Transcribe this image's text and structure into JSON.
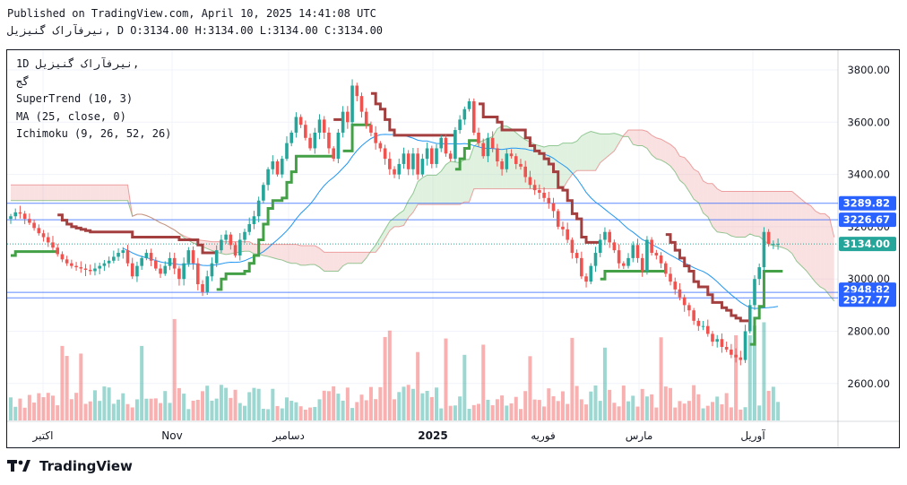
{
  "header": {
    "published": "Published on TradingView.com, April 10, 2025 14:41:08 UTC",
    "ohlc_line": "نیرفآراک گنیزیل, D O:3134.00 H:3134.00 L:3134.00 C:3134.00"
  },
  "legend": {
    "symbol": "1D نیرفآراک گنیزیل,",
    "subtitle": "گج",
    "supertrend": "SuperTrend (10, 3)",
    "ma": "MA (25, close, 0)",
    "ichimoku": "Ichimoku (9, 26, 52, 26)"
  },
  "price_axis": {
    "ticks": [
      "3800.00",
      "3600.00",
      "3400.00",
      "3200.00",
      "3000.00",
      "2800.00",
      "2600.00"
    ],
    "badges": [
      {
        "value": "3289.82",
        "color": "#2962ff"
      },
      {
        "value": "3226.67",
        "color": "#2962ff"
      },
      {
        "value": "3134.00",
        "color": "#26a69a"
      },
      {
        "value": "2948.82",
        "color": "#2962ff"
      },
      {
        "value": "2927.77",
        "color": "#2962ff"
      }
    ]
  },
  "time_axis": {
    "labels": [
      {
        "text": "اکتبر",
        "bold": false
      },
      {
        "text": "Nov",
        "bold": false
      },
      {
        "text": "دسامبر",
        "bold": false
      },
      {
        "text": "2025",
        "bold": true
      },
      {
        "text": "فوریه",
        "bold": false
      },
      {
        "text": "مارس",
        "bold": false
      },
      {
        "text": "آوریل",
        "bold": false
      }
    ]
  },
  "footer": {
    "brand": "TradingView"
  },
  "colors": {
    "up": "#26a69a",
    "down": "#ef5350",
    "ma": "#2196f3",
    "supertrend_up": "#43a047",
    "supertrend_down": "#a33f3f",
    "cloud_bull": "#a5d6a7",
    "cloud_bear": "#ef9a9a",
    "hline": "#2962ff"
  },
  "chart_data": {
    "type": "candlestick",
    "ylim": [
      2430,
      3880
    ],
    "horizontal_levels": [
      3289.82,
      3226.67,
      3134.0,
      2948.82,
      2927.77
    ],
    "last_price": 3134.0,
    "closes": [
      3240,
      3255,
      3250,
      3230,
      3215,
      3195,
      3175,
      3160,
      3140,
      3120,
      3095,
      3075,
      3060,
      3050,
      3045,
      3040,
      3035,
      3030,
      3040,
      3050,
      3060,
      3070,
      3085,
      3100,
      3110,
      3060,
      3010,
      3050,
      3080,
      3100,
      3070,
      3040,
      3020,
      3050,
      3080,
      3040,
      3000,
      3060,
      3110,
      3060,
      2980,
      2950,
      3010,
      3060,
      3110,
      3150,
      3170,
      3130,
      3090,
      3150,
      3180,
      3210,
      3240,
      3300,
      3360,
      3420,
      3450,
      3400,
      3460,
      3520,
      3560,
      3620,
      3590,
      3540,
      3500,
      3560,
      3610,
      3560,
      3500,
      3460,
      3560,
      3640,
      3600,
      3740,
      3700,
      3640,
      3590,
      3560,
      3520,
      3500,
      3460,
      3420,
      3400,
      3440,
      3480,
      3420,
      3480,
      3400,
      3460,
      3500,
      3440,
      3500,
      3540,
      3480,
      3460,
      3570,
      3610,
      3650,
      3680,
      3560,
      3520,
      3470,
      3540,
      3500,
      3450,
      3420,
      3480,
      3470,
      3440,
      3430,
      3390,
      3360,
      3340,
      3330,
      3310,
      3290,
      3260,
      3200,
      3190,
      3150,
      3100,
      3080,
      3010,
      2990,
      3050,
      3100,
      3150,
      3180,
      3140,
      3110,
      3060,
      3050,
      3080,
      3130,
      3080,
      3030,
      3150,
      3100,
      3090,
      3060,
      3020,
      2990,
      2960,
      2930,
      2900,
      2880,
      2840,
      2820,
      2820,
      2790,
      2760,
      2770,
      2740,
      2730,
      2710,
      2700,
      2690,
      2800,
      2900,
      3000,
      3045,
      3180,
      3134,
      3134,
      3134
    ]
  }
}
